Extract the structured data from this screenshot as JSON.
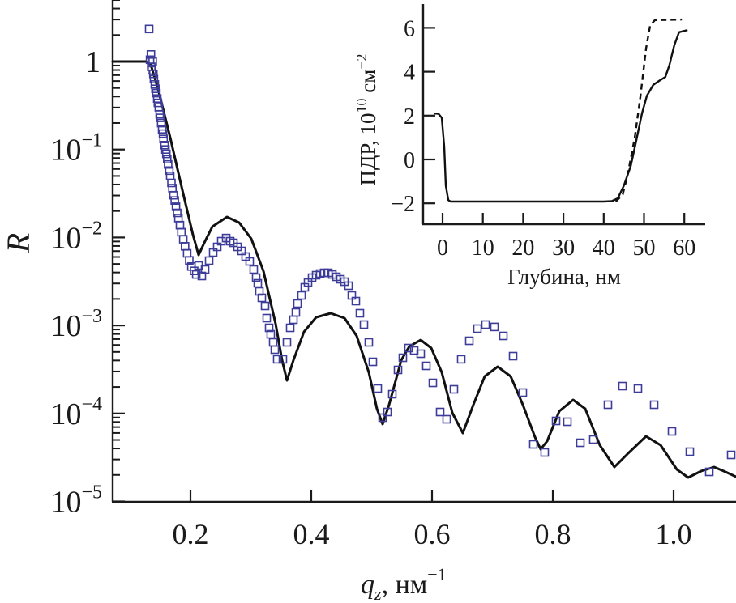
{
  "chart_data": [
    {
      "id": "main",
      "type": "scatter+line",
      "title": "",
      "xlabel": "q_z, нм^-1",
      "xlabel_parts": {
        "var": "q",
        "sub": "z",
        "unit": ", нм",
        "sup": "−1"
      },
      "ylabel": "R",
      "yscale": "log",
      "xlim": [
        0.071,
        1.103
      ],
      "ylim": [
        1e-05,
        5
      ],
      "grid": false,
      "x_ticks": [
        0.2,
        0.4,
        0.6,
        0.8,
        1.0
      ],
      "x_tick_labels": [
        "0.2",
        "0.4",
        "0.6",
        "0.8",
        "1.0"
      ],
      "y_ticks": [
        1,
        0.1,
        0.01,
        0.001,
        0.0001,
        1e-05
      ],
      "y_tick_labels": [
        {
          "base": "1",
          "exp": ""
        },
        {
          "base": "10",
          "exp": "−1"
        },
        {
          "base": "10",
          "exp": "−2"
        },
        {
          "base": "10",
          "exp": "−3"
        },
        {
          "base": "10",
          "exp": "−4"
        },
        {
          "base": "10",
          "exp": "−5"
        }
      ],
      "series": [
        {
          "name": "experiment",
          "kind": "scatter",
          "marker": "open-square",
          "color": "#3d3d99",
          "points_log10": [
            [
              0.1315,
              0.37
            ],
            [
              0.133,
              0.02
            ],
            [
              0.1345,
              0.08
            ],
            [
              0.135,
              -0.06
            ],
            [
              0.136,
              -0.1
            ],
            [
              0.1375,
              0.0
            ],
            [
              0.1385,
              -0.14
            ],
            [
              0.1395,
              -0.2
            ],
            [
              0.141,
              -0.26
            ],
            [
              0.142,
              -0.31
            ],
            [
              0.1435,
              -0.36
            ],
            [
              0.145,
              -0.42
            ],
            [
              0.146,
              -0.47
            ],
            [
              0.1475,
              -0.52
            ],
            [
              0.149,
              -0.6
            ],
            [
              0.15,
              -0.64
            ],
            [
              0.1515,
              -0.7
            ],
            [
              0.153,
              -0.77
            ],
            [
              0.1545,
              -0.82
            ],
            [
              0.1555,
              -0.88
            ],
            [
              0.157,
              -0.95
            ],
            [
              0.1585,
              -1.0
            ],
            [
              0.16,
              -1.05
            ],
            [
              0.1615,
              -1.11
            ],
            [
              0.163,
              -1.17
            ],
            [
              0.165,
              -1.24
            ],
            [
              0.1665,
              -1.3
            ],
            [
              0.1685,
              -1.38
            ],
            [
              0.17,
              -1.44
            ],
            [
              0.172,
              -1.52
            ],
            [
              0.174,
              -1.58
            ],
            [
              0.176,
              -1.65
            ],
            [
              0.178,
              -1.72
            ],
            [
              0.18,
              -1.78
            ],
            [
              0.1825,
              -1.86
            ],
            [
              0.185,
              -1.94
            ],
            [
              0.188,
              -2.02
            ],
            [
              0.191,
              -2.1
            ],
            [
              0.1945,
              -2.18
            ],
            [
              0.198,
              -2.26
            ],
            [
              0.2015,
              -2.33
            ],
            [
              0.206,
              -2.38
            ],
            [
              0.2095,
              -2.42
            ],
            [
              0.2134,
              -2.318
            ],
            [
              0.2188,
              -2.438
            ],
            [
              0.2242,
              -2.364
            ],
            [
              0.2309,
              -2.263
            ],
            [
              0.2376,
              -2.171
            ],
            [
              0.2443,
              -2.107
            ],
            [
              0.251,
              -2.042
            ],
            [
              0.2591,
              -2.006
            ],
            [
              0.2658,
              -2.042
            ],
            [
              0.2711,
              -2.061
            ],
            [
              0.2779,
              -2.107
            ],
            [
              0.2846,
              -2.153
            ],
            [
              0.2913,
              -2.217
            ],
            [
              0.298,
              -2.272
            ],
            [
              0.3047,
              -2.364
            ],
            [
              0.3087,
              -2.456
            ],
            [
              0.3114,
              -2.521
            ],
            [
              0.3141,
              -2.613
            ],
            [
              0.3181,
              -2.686
            ],
            [
              0.3235,
              -2.778
            ],
            [
              0.3262,
              -2.916
            ],
            [
              0.3302,
              -3.027
            ],
            [
              0.3329,
              -3.1
            ],
            [
              0.3369,
              -3.192
            ],
            [
              0.3396,
              -3.275
            ],
            [
              0.3436,
              -3.385
            ],
            [
              0.353,
              -3.385
            ],
            [
              0.3597,
              -3.192
            ],
            [
              0.3651,
              -3.027
            ],
            [
              0.3705,
              -2.935
            ],
            [
              0.3745,
              -2.852
            ],
            [
              0.3772,
              -2.751
            ],
            [
              0.3839,
              -2.659
            ],
            [
              0.3893,
              -2.567
            ],
            [
              0.3946,
              -2.512
            ],
            [
              0.4013,
              -2.456
            ],
            [
              0.4081,
              -2.429
            ],
            [
              0.4148,
              -2.41
            ],
            [
              0.4215,
              -2.401
            ],
            [
              0.4282,
              -2.401
            ],
            [
              0.4349,
              -2.42
            ],
            [
              0.4416,
              -2.447
            ],
            [
              0.4483,
              -2.475
            ],
            [
              0.455,
              -2.502
            ],
            [
              0.4617,
              -2.548
            ],
            [
              0.4671,
              -2.659
            ],
            [
              0.4738,
              -2.723
            ],
            [
              0.4805,
              -2.861
            ],
            [
              0.4872,
              -2.99
            ],
            [
              0.4953,
              -3.192
            ],
            [
              0.502,
              -3.413
            ],
            [
              0.5101,
              -3.717
            ],
            [
              0.5181,
              -4.048
            ],
            [
              0.5262,
              -3.983
            ],
            [
              0.5342,
              -3.781
            ],
            [
              0.5436,
              -3.505
            ],
            [
              0.5517,
              -3.367
            ],
            [
              0.5611,
              -3.257
            ],
            [
              0.5705,
              -3.284
            ],
            [
              0.5812,
              -3.321
            ],
            [
              0.5906,
              -3.459
            ],
            [
              0.6013,
              -3.652
            ],
            [
              0.6134,
              -3.983
            ],
            [
              0.6242,
              -4.066
            ],
            [
              0.6362,
              -3.726
            ],
            [
              0.6483,
              -3.385
            ],
            [
              0.6617,
              -3.174
            ],
            [
              0.6752,
              -3.036
            ],
            [
              0.6886,
              -2.99
            ],
            [
              0.7034,
              -3.017
            ],
            [
              0.7181,
              -3.119
            ],
            [
              0.7342,
              -3.349
            ],
            [
              0.7503,
              -3.763
            ],
            [
              0.7678,
              -4.351
            ],
            [
              0.7866,
              -4.443
            ],
            [
              0.8054,
              -4.085
            ],
            [
              0.8242,
              -4.094
            ],
            [
              0.8456,
              -4.333
            ],
            [
              0.8671,
              -4.296
            ],
            [
              0.8913,
              -3.901
            ],
            [
              0.9154,
              -3.689
            ],
            [
              0.9409,
              -3.717
            ],
            [
              0.9678,
              -3.901
            ],
            [
              0.9973,
              -4.204
            ],
            [
              1.0268,
              -4.434
            ],
            [
              1.0591,
              -4.664
            ],
            [
              1.0953,
              -4.471
            ]
          ]
        },
        {
          "name": "fit",
          "kind": "line",
          "color": "#111111",
          "points_log10": [
            [
              0.0711,
              0
            ],
            [
              0.1262,
              0
            ],
            [
              0.1342,
              -0.037
            ],
            [
              0.1463,
              -0.313
            ],
            [
              0.1664,
              -0.865
            ],
            [
              0.1866,
              -1.463
            ],
            [
              0.204,
              -1.969
            ],
            [
              0.2134,
              -2.199
            ],
            [
              0.2228,
              -2.061
            ],
            [
              0.2362,
              -1.877
            ],
            [
              0.2604,
              -1.766
            ],
            [
              0.2805,
              -1.831
            ],
            [
              0.3007,
              -2.015
            ],
            [
              0.3208,
              -2.383
            ],
            [
              0.3409,
              -2.981
            ],
            [
              0.3517,
              -3.395
            ],
            [
              0.3597,
              -3.625
            ],
            [
              0.3705,
              -3.395
            ],
            [
              0.3879,
              -3.073
            ],
            [
              0.4081,
              -2.907
            ],
            [
              0.4322,
              -2.861
            ],
            [
              0.455,
              -2.916
            ],
            [
              0.4752,
              -3.119
            ],
            [
              0.4953,
              -3.533
            ],
            [
              0.5087,
              -3.947
            ],
            [
              0.5181,
              -4.121
            ],
            [
              0.5289,
              -3.901
            ],
            [
              0.549,
              -3.395
            ],
            [
              0.5624,
              -3.238
            ],
            [
              0.5812,
              -3.165
            ],
            [
              0.5987,
              -3.257
            ],
            [
              0.6161,
              -3.533
            ],
            [
              0.6336,
              -3.993
            ],
            [
              0.651,
              -4.223
            ],
            [
              0.6685,
              -3.901
            ],
            [
              0.6872,
              -3.579
            ],
            [
              0.7087,
              -3.468
            ],
            [
              0.7302,
              -3.579
            ],
            [
              0.7503,
              -3.901
            ],
            [
              0.7705,
              -4.269
            ],
            [
              0.7799,
              -4.407
            ],
            [
              0.7906,
              -4.315
            ],
            [
              0.8107,
              -3.974
            ],
            [
              0.8336,
              -3.845
            ],
            [
              0.8537,
              -3.947
            ],
            [
              0.8779,
              -4.361
            ],
            [
              0.902,
              -4.609
            ],
            [
              0.9248,
              -4.453
            ],
            [
              0.9544,
              -4.259
            ],
            [
              0.9785,
              -4.361
            ],
            [
              1.0054,
              -4.637
            ],
            [
              1.0242,
              -4.729
            ],
            [
              1.0456,
              -4.655
            ],
            [
              1.0671,
              -4.609
            ],
            [
              1.0859,
              -4.664
            ],
            [
              1.1034,
              -4.719
            ]
          ]
        }
      ]
    },
    {
      "id": "inset",
      "type": "line",
      "xlabel": "Глубина, нм",
      "ylabel": "ПДР, 10^10 см^-2",
      "ylabel_parts": {
        "main": "ПДР, 10",
        "sup1": "10",
        "unit": " см",
        "sup2": "−2"
      },
      "xlim": [
        -5,
        65
      ],
      "ylim": [
        -3.0,
        7.0
      ],
      "grid": false,
      "x_ticks": [
        0,
        10,
        20,
        30,
        40,
        50,
        60
      ],
      "x_tick_labels": [
        "0",
        "10",
        "20",
        "30",
        "40",
        "50",
        "60"
      ],
      "y_ticks": [
        6,
        4,
        2,
        0,
        -2
      ],
      "y_tick_labels": [
        "6",
        "4",
        "2",
        "0",
        "−2"
      ],
      "series": [
        {
          "name": "solid-profile",
          "style": "solid",
          "color": "#111111",
          "points": [
            [
              -2.2,
              2.1
            ],
            [
              -1.0,
              2.08
            ],
            [
              -0.2,
              1.9
            ],
            [
              0.4,
              0.6
            ],
            [
              0.8,
              -1.2
            ],
            [
              1.4,
              -1.85
            ],
            [
              2.0,
              -1.92
            ],
            [
              10,
              -1.92
            ],
            [
              20,
              -1.92
            ],
            [
              30,
              -1.92
            ],
            [
              40,
              -1.92
            ],
            [
              42.0,
              -1.9
            ],
            [
              43.5,
              -1.77
            ],
            [
              45.0,
              -1.2
            ],
            [
              46.7,
              -0.3
            ],
            [
              48.0,
              0.8
            ],
            [
              49.5,
              2.1
            ],
            [
              50.7,
              2.9
            ],
            [
              52.3,
              3.4
            ],
            [
              53.9,
              3.6
            ],
            [
              55.3,
              3.76
            ],
            [
              56.3,
              4.3
            ],
            [
              57.5,
              5.2
            ],
            [
              58.7,
              5.8
            ],
            [
              60.8,
              5.9
            ]
          ]
        },
        {
          "name": "dashed-profile",
          "style": "dashed",
          "color": "#111111",
          "points": [
            [
              43.0,
              -1.92
            ],
            [
              44.7,
              -1.6
            ],
            [
              46.0,
              -0.65
            ],
            [
              47.7,
              1.0
            ],
            [
              49.1,
              2.85
            ],
            [
              50.5,
              5.05
            ],
            [
              51.5,
              6.1
            ],
            [
              52.7,
              6.35
            ],
            [
              59.4,
              6.38
            ]
          ]
        }
      ]
    }
  ]
}
